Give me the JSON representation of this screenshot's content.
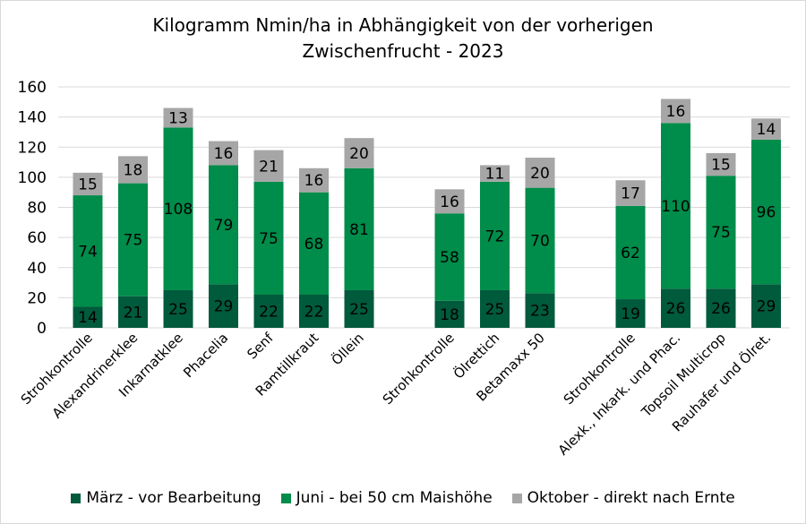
{
  "chart_data": {
    "type": "bar",
    "stacked": true,
    "title": "Kilogramm Nmin/ha in Abhängigkeit von der vorherigen Zwischenfrucht - 2023",
    "title_lines": [
      "Kilogramm Nmin/ha in Abhängigkeit von der vorherigen",
      "Zwischenfrucht - 2023"
    ],
    "xlabel": "",
    "ylabel": "",
    "ylim": [
      0,
      160
    ],
    "yticks": [
      0,
      20,
      40,
      60,
      80,
      100,
      120,
      140,
      160
    ],
    "grid": true,
    "legend_position": "bottom",
    "groups": [
      [
        "Strohkontrolle",
        "Alexandrinerklee",
        "Inkarnatklee",
        "Phacelia",
        "Senf",
        "Ramtillkraut",
        "Öllein"
      ],
      [
        "Strohkontrolle",
        "Ölrettich",
        "Betamaxx 50"
      ],
      [
        "Strohkontrolle",
        "Alexk., Inkark. und Phac.",
        "Topsoil Multicrop",
        "Rauhafer und Ölret."
      ]
    ],
    "categories": [
      "Strohkontrolle",
      "Alexandrinerklee",
      "Inkarnatklee",
      "Phacelia",
      "Senf",
      "Ramtillkraut",
      "Öllein",
      "Strohkontrolle",
      "Ölrettich",
      "Betamaxx 50",
      "Strohkontrolle",
      "Alexk., Inkark. und Phac.",
      "Topsoil Multicrop",
      "Rauhafer und Ölret."
    ],
    "series": [
      {
        "name": "März - vor Bearbeitung",
        "color": "#005a3c",
        "values": [
          14,
          21,
          25,
          29,
          22,
          22,
          25,
          18,
          25,
          23,
          19,
          26,
          26,
          29
        ]
      },
      {
        "name": "Juni - bei 50 cm Maishöhe",
        "color": "#008c4a",
        "values": [
          74,
          75,
          108,
          79,
          75,
          68,
          81,
          58,
          72,
          70,
          62,
          110,
          75,
          96
        ]
      },
      {
        "name": "Oktober - direkt nach Ernte",
        "color": "#a6a6a6",
        "values": [
          15,
          18,
          13,
          16,
          21,
          16,
          20,
          16,
          11,
          20,
          17,
          16,
          15,
          14
        ]
      }
    ]
  }
}
